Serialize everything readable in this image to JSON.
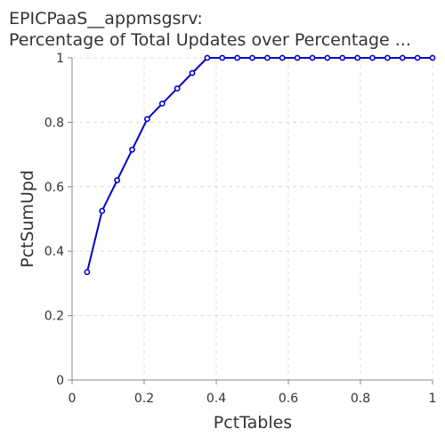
{
  "chart_data": {
    "type": "line",
    "title": "EPICPaaS__appmsgsrv:",
    "subtitle": "Percentage of Total Updates over Percentage ...",
    "xlabel": "PctTables",
    "ylabel": "PctSumUpd",
    "xlim": [
      0,
      1
    ],
    "ylim": [
      0,
      1
    ],
    "xticks": [
      "0",
      "0.2",
      "0.4",
      "0.6",
      "0.8",
      "1"
    ],
    "yticks": [
      "0",
      "0.2",
      "0.4",
      "0.6",
      "0.8",
      "1"
    ],
    "grid": true,
    "legend": "none",
    "color": "#0000cc",
    "series": [
      {
        "x": [
          0.0417,
          0.0833,
          0.125,
          0.1667,
          0.2083,
          0.25,
          0.2917,
          0.3333,
          0.375,
          0.4167,
          0.4583,
          0.5,
          0.5417,
          0.5833,
          0.625,
          0.6667,
          0.7083,
          0.75,
          0.7917,
          0.8333,
          0.875,
          0.9167,
          0.9583,
          1.0
        ],
        "values": [
          0.335,
          0.525,
          0.62,
          0.715,
          0.81,
          0.858,
          0.905,
          0.953,
          1.0,
          1.0,
          1.0,
          1.0,
          1.0,
          1.0,
          1.0,
          1.0,
          1.0,
          1.0,
          1.0,
          1.0,
          1.0,
          1.0,
          1.0,
          1.0
        ]
      }
    ]
  }
}
